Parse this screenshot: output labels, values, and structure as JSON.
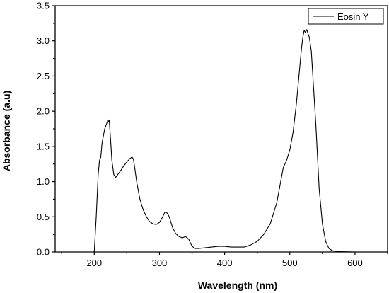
{
  "chart_data": {
    "type": "line",
    "xlabel": "Wavelength (nm)",
    "ylabel": "Absorbance (a.u)",
    "xlim": [
      140,
      650
    ],
    "ylim": [
      0,
      3.5
    ],
    "xticks": [
      200,
      300,
      400,
      500,
      600
    ],
    "yticks": [
      0.0,
      0.5,
      1.0,
      1.5,
      2.0,
      2.5,
      3.0,
      3.5
    ],
    "xtick_labels": [
      "200",
      "300",
      "400",
      "500",
      "600"
    ],
    "ytick_labels": [
      "0.0",
      "0.5",
      "1.0",
      "1.5",
      "2.0",
      "2.5",
      "3.0",
      "3.5"
    ],
    "grid": false,
    "legend_position": "top-right",
    "series": [
      {
        "name": "Eosin Y",
        "color": "#000000",
        "x": [
          200,
          203,
          206,
          208,
          210,
          212,
          214,
          216,
          218,
          220,
          221,
          222,
          223,
          225,
          227,
          230,
          233,
          236,
          240,
          245,
          250,
          255,
          258,
          260,
          262,
          265,
          270,
          275,
          280,
          285,
          290,
          295,
          300,
          305,
          308,
          310,
          312,
          315,
          320,
          325,
          330,
          335,
          340,
          345,
          350,
          355,
          360,
          370,
          380,
          390,
          400,
          410,
          420,
          430,
          440,
          450,
          460,
          470,
          480,
          485,
          490,
          495,
          500,
          505,
          510,
          515,
          518,
          520,
          522,
          524,
          526,
          528,
          530,
          533,
          536,
          540,
          545,
          550,
          555,
          560,
          565,
          570,
          580,
          600,
          650
        ],
        "y": [
          0.0,
          0.5,
          1.1,
          1.3,
          1.35,
          1.55,
          1.65,
          1.75,
          1.8,
          1.85,
          1.88,
          1.85,
          1.87,
          1.6,
          1.3,
          1.1,
          1.06,
          1.1,
          1.15,
          1.22,
          1.28,
          1.33,
          1.35,
          1.32,
          1.2,
          1.0,
          0.75,
          0.6,
          0.5,
          0.43,
          0.4,
          0.39,
          0.42,
          0.5,
          0.56,
          0.57,
          0.55,
          0.5,
          0.35,
          0.26,
          0.22,
          0.2,
          0.22,
          0.18,
          0.08,
          0.05,
          0.05,
          0.06,
          0.07,
          0.08,
          0.08,
          0.07,
          0.07,
          0.07,
          0.1,
          0.15,
          0.25,
          0.4,
          0.7,
          0.95,
          1.2,
          1.3,
          1.45,
          1.7,
          2.1,
          2.6,
          2.9,
          3.05,
          3.15,
          3.12,
          3.16,
          3.1,
          3.05,
          2.85,
          2.4,
          1.8,
          0.9,
          0.4,
          0.15,
          0.05,
          0.02,
          0.01,
          0.005,
          0.0,
          0.0
        ]
      }
    ]
  }
}
